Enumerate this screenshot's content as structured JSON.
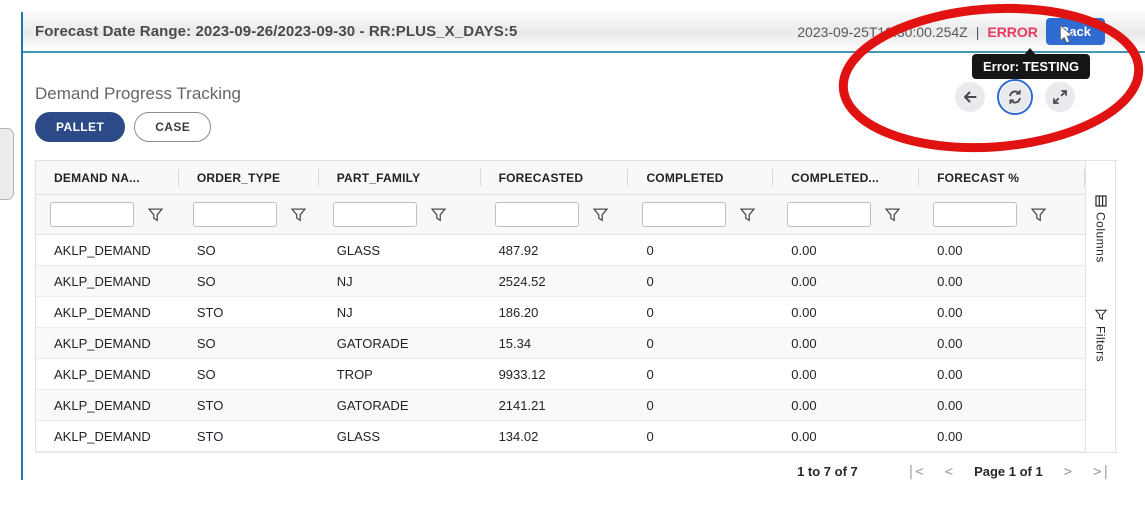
{
  "colors": {
    "accent_line": "#1e78a8",
    "accent_light": "#4796b8",
    "error_text": "#e83a5f",
    "back_button": "#2f6bd0",
    "pallet_pill": "#2c4a87",
    "annotation": "#e01212",
    "tooltip_bg": "#161616"
  },
  "topbar": {
    "title": "Forecast Date Range: 2023-09-26/2023-09-30 - RR:PLUS_X_DAYS:5",
    "timestamp": "2023-09-25T19:30:00.254Z",
    "divider": "|",
    "status": "ERROR",
    "back_button": "Back"
  },
  "tooltip": {
    "text": "Error: TESTING"
  },
  "toolbar": {
    "back_icon": "back-arrow",
    "refresh_icon": "refresh",
    "expand_icon": "expand-diagonal"
  },
  "content": {
    "title": "Demand Progress Tracking",
    "pallet_label": "PALLET",
    "case_label": "CASE",
    "selected_unit": "PALLET"
  },
  "table": {
    "columns": [
      "DEMAND NA...",
      "ORDER_TYPE",
      "PART_FAMILY",
      "FORECASTED",
      "COMPLETED",
      "COMPLETED...",
      "FORECAST %"
    ],
    "filter_value": "",
    "filter_icon": "filter-funnel",
    "rows": [
      [
        "AKLP_DEMAND",
        "SO",
        "GLASS",
        "487.92",
        "0",
        "0.00",
        "0.00"
      ],
      [
        "AKLP_DEMAND",
        "SO",
        "NJ",
        "2524.52",
        "0",
        "0.00",
        "0.00"
      ],
      [
        "AKLP_DEMAND",
        "STO",
        "NJ",
        "186.20",
        "0",
        "0.00",
        "0.00"
      ],
      [
        "AKLP_DEMAND",
        "SO",
        "GATORADE",
        "15.34",
        "0",
        "0.00",
        "0.00"
      ],
      [
        "AKLP_DEMAND",
        "SO",
        "TROP",
        "9933.12",
        "0",
        "0.00",
        "0.00"
      ],
      [
        "AKLP_DEMAND",
        "STO",
        "GATORADE",
        "2141.21",
        "0",
        "0.00",
        "0.00"
      ],
      [
        "AKLP_DEMAND",
        "STO",
        "GLASS",
        "134.02",
        "0",
        "0.00",
        "0.00"
      ]
    ]
  },
  "side_panel": {
    "columns": "Columns",
    "filters": "Filters",
    "columns_icon": "columns-grid",
    "filters_icon": "filter-funnel"
  },
  "pagination": {
    "summary": "1 to 7 of 7",
    "page": "Page 1 of 1",
    "first": "|<",
    "prev": "<",
    "next": ">",
    "last": ">|"
  }
}
